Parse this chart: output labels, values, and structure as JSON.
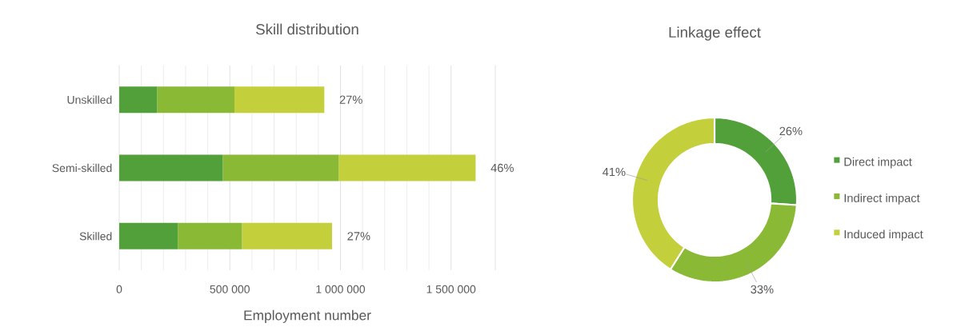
{
  "chart_data": [
    {
      "type": "bar",
      "orientation": "horizontal",
      "stacked": true,
      "title": "Skill distribution",
      "xlabel": "Employment number",
      "categories": [
        "Unskilled",
        "Semi-skilled",
        "Skilled"
      ],
      "series": [
        {
          "color": "#52a03a",
          "values": [
            171000,
            468000,
            265000
          ]
        },
        {
          "color": "#8aba35",
          "values": [
            350000,
            524000,
            290000
          ]
        },
        {
          "color": "#c4cf3c",
          "values": [
            406000,
            619000,
            407000
          ]
        }
      ],
      "annotations": [
        "27%",
        "46%",
        "27%"
      ],
      "xlim": [
        0,
        1700000
      ],
      "xticks": [
        0,
        {
          "value": 500000,
          "label": "500 000"
        },
        {
          "value": 1000000,
          "label": "1 000 000"
        },
        {
          "value": 1500000,
          "label": "1 500 000"
        }
      ],
      "grid": "x"
    },
    {
      "type": "donut",
      "title": "Linkage effect",
      "categories": [
        "Direct impact",
        "Indirect impact",
        "Induced impact"
      ],
      "values": [
        26,
        33,
        41
      ],
      "colors": [
        "#52a03a",
        "#8aba35",
        "#c4cf3c"
      ],
      "value_labels": [
        "26%",
        "33%",
        "41%"
      ],
      "legend": "right"
    }
  ]
}
